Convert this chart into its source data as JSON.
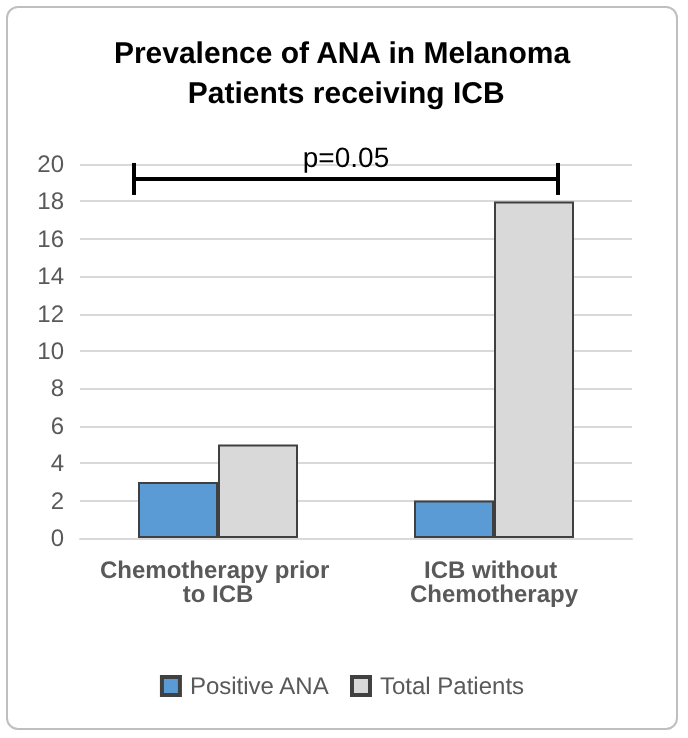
{
  "chart_data": {
    "type": "bar",
    "title": "Prevalence of ANA in Melanoma Patients receiving ICB",
    "categories": [
      "Chemotherapy prior to ICB",
      "ICB without Chemotherapy"
    ],
    "series": [
      {
        "name": "Positive ANA",
        "color": "#5b9bd5",
        "values": [
          3,
          2
        ]
      },
      {
        "name": "Total Patients",
        "color": "#d9d9d9",
        "values": [
          5,
          18
        ]
      }
    ],
    "ylim": [
      0,
      20
    ],
    "yticks": [
      0,
      2,
      4,
      6,
      8,
      10,
      12,
      14,
      16,
      18,
      20
    ],
    "grid": "y",
    "legend": "bottom",
    "annotations": [
      "p=0.05"
    ]
  }
}
